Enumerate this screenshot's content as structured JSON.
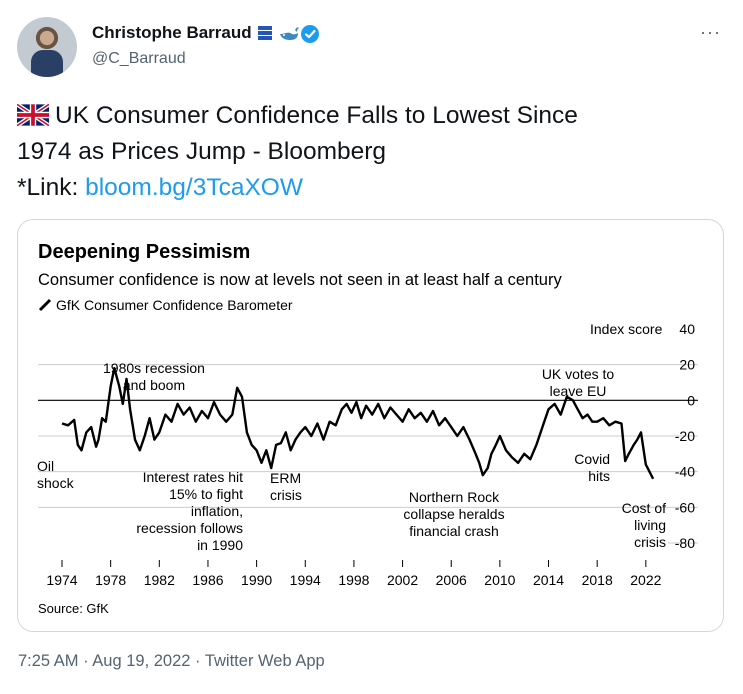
{
  "tweet": {
    "display_name": "Christophe Barraud",
    "handle": "@C_Barraud",
    "more_label": "···",
    "text_line1": "UK Consumer Confidence Falls to Lowest Since",
    "text_line2": "1974 as Prices Jump - Bloomberg",
    "link_prefix": "*Link: ",
    "link_text": "bloom.bg/3TcaXOW",
    "timestamp": "7:25 AM · Aug 19, 2022",
    "separator": " · ",
    "source": "Twitter Web App",
    "icons": [
      "flag-uk-icon",
      "data-icon",
      "whale-icon",
      "verified-badge-icon",
      "more-icon"
    ],
    "colors": {
      "link": "#1d9bf0",
      "verified": "#1d9bf0",
      "muted": "#536471"
    }
  },
  "chart_data": {
    "type": "line",
    "title": "Deepening Pessimism",
    "subtitle": "Consumer confidence is now at levels not seen in at least half a century",
    "legend": "GfK Consumer Confidence Barometer",
    "ylabel": "Index score",
    "source": "Source: GfK",
    "ylim": [
      -80,
      40
    ],
    "xlim": [
      1974,
      2023
    ],
    "y_ticks": [
      "40",
      "20",
      "0",
      "-20",
      "-40",
      "-60",
      "-80"
    ],
    "y_tick_values": [
      40,
      20,
      0,
      -20,
      -40,
      -60,
      -80
    ],
    "x_ticks": [
      "1974",
      "1978",
      "1982",
      "1986",
      "1990",
      "1994",
      "1998",
      "2002",
      "2006",
      "2010",
      "2014",
      "2018",
      "2022"
    ],
    "x_tick_values": [
      1974,
      1978,
      1982,
      1986,
      1990,
      1994,
      1998,
      2002,
      2006,
      2010,
      2014,
      2018,
      2022
    ],
    "annotations": [
      {
        "lines": [
          "Oil",
          "shock"
        ]
      },
      {
        "lines": [
          "1980s recession",
          "and boom"
        ]
      },
      {
        "lines": [
          "Interest rates hit",
          "15% to fight",
          "inflation,",
          "recession follows",
          "in 1990"
        ]
      },
      {
        "lines": [
          "ERM",
          "crisis"
        ]
      },
      {
        "lines": [
          "Northern Rock",
          "collapse heralds",
          "financial crash"
        ]
      },
      {
        "lines": [
          "UK votes to",
          "leave EU"
        ]
      },
      {
        "lines": [
          "Covid",
          "hits"
        ]
      },
      {
        "lines": [
          "Cost of",
          "living",
          "crisis"
        ]
      }
    ],
    "series": [
      {
        "x": [
          1974.0,
          1974.5,
          1975.0,
          1975.3,
          1975.6,
          1976.0,
          1976.4,
          1976.8,
          1977.0,
          1977.3,
          1977.6,
          1978.0,
          1978.3,
          1978.7,
          1979.0,
          1979.3,
          1979.6,
          1980.0,
          1980.4,
          1980.8,
          1981.2,
          1981.6,
          1982.0,
          1982.5,
          1983.0,
          1983.5,
          1984.0,
          1984.5,
          1985.0,
          1985.5,
          1986.0,
          1986.5,
          1987.0,
          1987.5,
          1988.0,
          1988.4,
          1988.8,
          1989.2,
          1989.6,
          1990.0,
          1990.4,
          1990.8,
          1991.2,
          1991.6,
          1992.0,
          1992.4,
          1992.8,
          1993.2,
          1993.6,
          1994.0,
          1994.5,
          1995.0,
          1995.5,
          1996.0,
          1996.5,
          1997.0,
          1997.4,
          1997.8,
          1998.2,
          1998.6,
          1999.0,
          1999.5,
          2000.0,
          2000.5,
          2001.0,
          2001.5,
          2002.0,
          2002.5,
          2003.0,
          2003.5,
          2004.0,
          2004.5,
          2005.0,
          2005.5,
          2006.0,
          2006.5,
          2007.0,
          2007.5,
          2008.0,
          2008.3,
          2008.6,
          2009.0,
          2009.3,
          2009.6,
          2010.0,
          2010.5,
          2011.0,
          2011.5,
          2012.0,
          2012.5,
          2013.0,
          2013.5,
          2014.0,
          2014.5,
          2015.0,
          2015.5,
          2016.0,
          2016.4,
          2016.8,
          2017.2,
          2017.6,
          2018.0,
          2018.5,
          2019.0,
          2019.5,
          2020.0,
          2020.3,
          2020.6,
          2021.0,
          2021.3,
          2021.6,
          2022.0,
          2022.3,
          2022.6
        ],
        "values": [
          -13,
          -14,
          -11,
          -25,
          -28,
          -18,
          -15,
          -26,
          -22,
          -10,
          -12,
          8,
          18,
          8,
          -2,
          12,
          -5,
          -22,
          -28,
          -20,
          -10,
          -22,
          -18,
          -8,
          -12,
          -2,
          -8,
          -4,
          -12,
          -6,
          -10,
          -1,
          -8,
          -12,
          -8,
          7,
          2,
          -18,
          -25,
          -28,
          -35,
          -28,
          -38,
          -25,
          -24,
          -18,
          -28,
          -22,
          -18,
          -15,
          -20,
          -13,
          -22,
          -12,
          -14,
          -5,
          -2,
          -7,
          -1,
          -10,
          -3,
          -8,
          -2,
          -10,
          -4,
          -8,
          -12,
          -5,
          -10,
          -7,
          -12,
          -6,
          -14,
          -10,
          -15,
          -20,
          -15,
          -22,
          -30,
          -35,
          -42,
          -38,
          -30,
          -26,
          -20,
          -28,
          -32,
          -35,
          -30,
          -33,
          -25,
          -15,
          -5,
          -2,
          -8,
          2,
          0,
          -5,
          -10,
          -8,
          -12,
          -12,
          -10,
          -14,
          -12,
          -13,
          -34,
          -30,
          -25,
          -22,
          -18,
          -36,
          -40,
          -44
        ]
      }
    ]
  }
}
